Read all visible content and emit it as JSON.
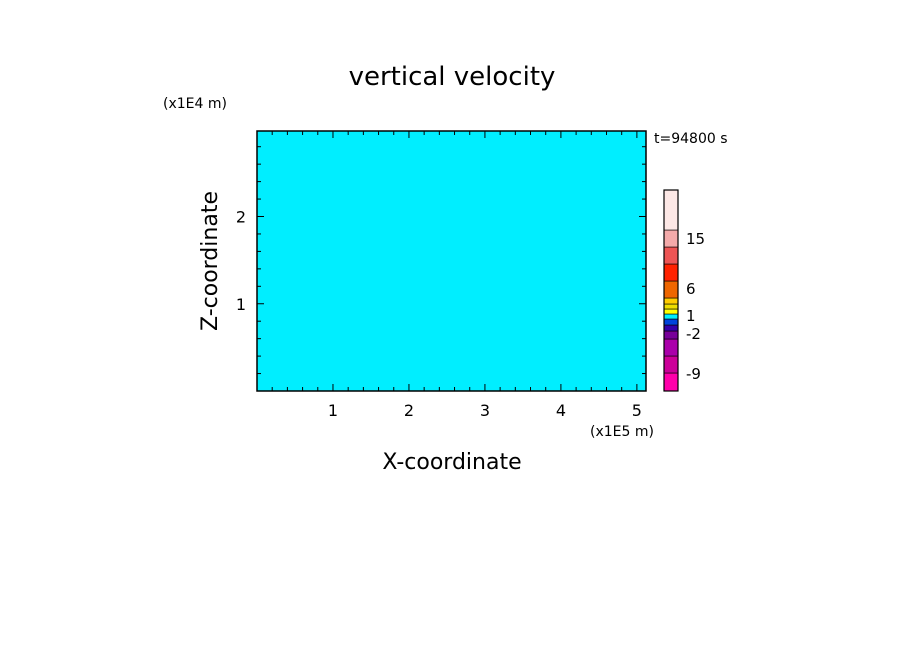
{
  "chart_data": {
    "type": "heatmap",
    "title": "vertical velocity",
    "time_label": "t=94800 s",
    "xlabel": "X-coordinate",
    "ylabel": "Z-coordinate",
    "x_unit": "(x1E5 m)",
    "y_unit": "(x1E4 m)",
    "xlim": [
      0,
      5.12
    ],
    "ylim": [
      0,
      2.98
    ],
    "x_ticks": [
      1,
      2,
      3,
      4,
      5
    ],
    "y_ticks": [
      1,
      2
    ],
    "x_tick_labels": [
      "1",
      "2",
      "3",
      "4",
      "5"
    ],
    "y_tick_labels": [
      "1",
      "2"
    ],
    "field_colors": {
      "positive": "#ffff00",
      "negative": "#00eeff"
    },
    "colorbar": {
      "levels": [
        {
          "color": "#ff00aa"
        },
        {
          "color": "#cc0099"
        },
        {
          "color": "#aa00aa"
        },
        {
          "color": "#770099"
        },
        {
          "color": "#3300aa"
        },
        {
          "color": "#0044dd"
        },
        {
          "color": "#00eeff"
        },
        {
          "color": "#ffff00"
        },
        {
          "color": "#eedd00"
        },
        {
          "color": "#ffcc00"
        },
        {
          "color": "#ee6600"
        },
        {
          "color": "#ff2200"
        },
        {
          "color": "#ee5555"
        },
        {
          "color": "#f4aaaa"
        },
        {
          "color": "#fde8e6"
        }
      ],
      "labels": [
        "-9",
        "-2",
        "1",
        "6",
        "15"
      ]
    },
    "grid": false,
    "legend": "right"
  }
}
